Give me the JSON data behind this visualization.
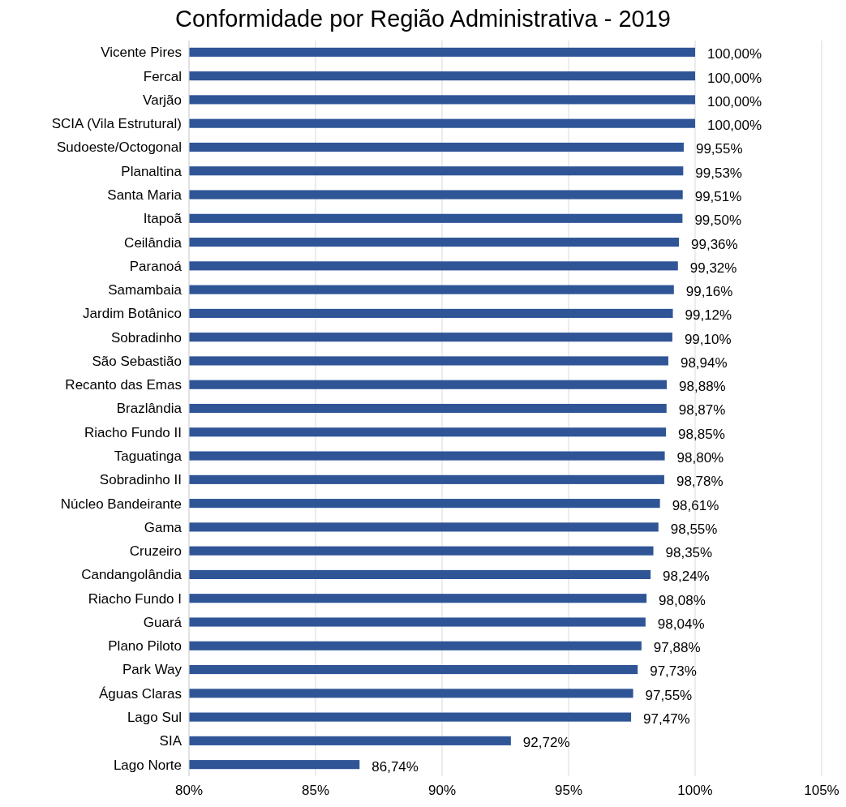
{
  "chart_data": {
    "type": "bar",
    "orientation": "horizontal",
    "title": "Conformidade por Região Administrativa - 2019",
    "categories": [
      "Vicente Pires",
      "Fercal",
      "Varjão",
      "SCIA (Vila Estrutural)",
      "Sudoeste/Octogonal",
      "Planaltina",
      "Santa Maria",
      "Itapoã",
      "Ceilândia",
      "Paranoá",
      "Samambaia",
      "Jardim Botânico",
      "Sobradinho",
      "São Sebastião",
      "Recanto das Emas",
      "Brazlândia",
      "Riacho Fundo II",
      "Taguatinga",
      "Sobradinho II",
      "Núcleo Bandeirante",
      "Gama",
      "Cruzeiro",
      "Candangolândia",
      "Riacho Fundo I",
      "Guará",
      "Plano Piloto",
      "Park Way",
      "Águas Claras",
      "Lago Sul",
      "SIA",
      "Lago Norte"
    ],
    "values": [
      100,
      100,
      100,
      100,
      99.55,
      99.53,
      99.51,
      99.5,
      99.36,
      99.32,
      99.16,
      99.12,
      99.1,
      98.94,
      98.88,
      98.87,
      98.85,
      98.8,
      98.78,
      98.61,
      98.55,
      98.35,
      98.24,
      98.08,
      98.04,
      97.88,
      97.73,
      97.55,
      97.47,
      92.72,
      86.74
    ],
    "value_labels": [
      "100,00%",
      "100,00%",
      "100,00%",
      "100,00%",
      "99,55%",
      "99,53%",
      "99,51%",
      "99,50%",
      "99,36%",
      "99,32%",
      "99,16%",
      "99,12%",
      "99,10%",
      "98,94%",
      "98,88%",
      "98,87%",
      "98,85%",
      "98,80%",
      "98,78%",
      "98,61%",
      "98,55%",
      "98,35%",
      "98,24%",
      "98,08%",
      "98,04%",
      "97,88%",
      "97,73%",
      "97,55%",
      "97,47%",
      "92,72%",
      "86,74%"
    ],
    "color": "#2f5597",
    "xlim": [
      80,
      105
    ],
    "xticks": [
      {
        "value": 80,
        "label": "80%"
      },
      {
        "value": 85,
        "label": "85%"
      },
      {
        "value": 90,
        "label": "90%"
      },
      {
        "value": 95,
        "label": "95%"
      },
      {
        "value": 100,
        "label": "100%"
      },
      {
        "value": 105,
        "label": "105%"
      }
    ],
    "grid": "x"
  }
}
